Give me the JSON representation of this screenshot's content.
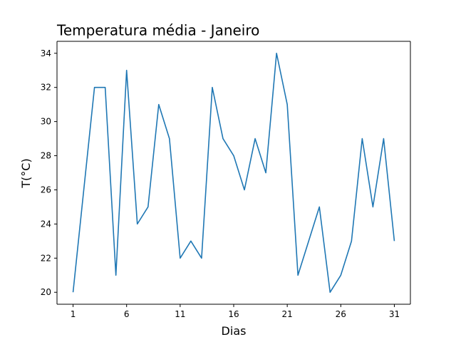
{
  "chart_data": {
    "type": "line",
    "title": "Temperatura média - Janeiro",
    "xlabel": "Dias",
    "ylabel": "T(°C)",
    "x": [
      1,
      2,
      3,
      4,
      5,
      6,
      7,
      8,
      9,
      10,
      11,
      12,
      13,
      14,
      15,
      16,
      17,
      18,
      19,
      20,
      21,
      22,
      23,
      24,
      25,
      26,
      27,
      28,
      29,
      30,
      31
    ],
    "series": [
      {
        "values": [
          20,
          26,
          32,
          32,
          21,
          33,
          24,
          25,
          31,
          29,
          22,
          23,
          22,
          32,
          29,
          28,
          26,
          29,
          27,
          34,
          31,
          21,
          23,
          25,
          20,
          21,
          23,
          29,
          25,
          29,
          23
        ],
        "color": "#1f77b4"
      }
    ],
    "xlim": [
      -0.5,
      32.5
    ],
    "ylim": [
      19.3,
      34.7
    ],
    "xticks": [
      1,
      6,
      11,
      16,
      21,
      26,
      31
    ],
    "yticks": [
      20,
      22,
      24,
      26,
      28,
      30,
      32,
      34
    ],
    "grid": false,
    "legend": false
  }
}
